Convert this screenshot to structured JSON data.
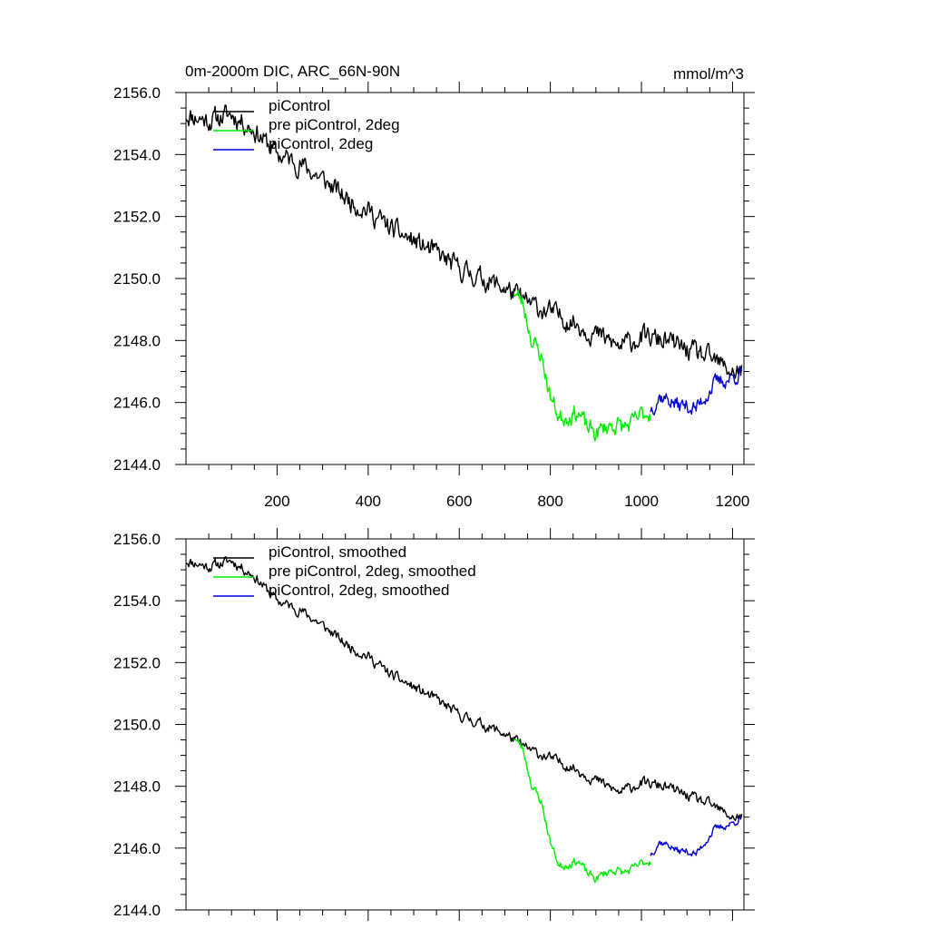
{
  "page_title": "0m-2000m DIC, ARC_66N-90N",
  "units": "mmol/m^3",
  "colors": {
    "black": "#000000",
    "green": "#00ee00",
    "blue": "#0000dd"
  },
  "chart_data": [
    {
      "type": "line",
      "title": "0m-2000m DIC, ARC_66N-90N",
      "units_label": "mmol/m^3",
      "xlim": [
        0,
        1225
      ],
      "ylim": [
        2144,
        2156
      ],
      "x_ticks": [
        200,
        400,
        600,
        800,
        1000,
        1200
      ],
      "x_tick_labels": [
        "200",
        "400",
        "600",
        "800",
        "1000",
        "1200"
      ],
      "y_ticks": [
        2144,
        2146,
        2148,
        2150,
        2152,
        2154,
        2156
      ],
      "y_tick_labels": [
        "2144.0",
        "2146.0",
        "2148.0",
        "2150.0",
        "2152.0",
        "2154.0",
        "2156.0"
      ],
      "legend_position": "top-left",
      "series": [
        {
          "name": "piControl",
          "color": "#000000",
          "noise": 0.28,
          "seed": 11,
          "x": [
            0,
            50,
            100,
            150,
            200,
            250,
            300,
            350,
            400,
            450,
            500,
            550,
            600,
            650,
            700,
            750,
            800,
            850,
            900,
            950,
            1000,
            1050,
            1100,
            1150,
            1200,
            1220
          ],
          "y": [
            2155.3,
            2155.1,
            2155.3,
            2154.8,
            2154.0,
            2153.7,
            2153.2,
            2152.6,
            2152.2,
            2151.6,
            2151.2,
            2150.8,
            2150.3,
            2150.0,
            2149.7,
            2149.2,
            2148.9,
            2148.6,
            2148.2,
            2147.8,
            2148.1,
            2148.0,
            2147.7,
            2147.4,
            2147.0,
            2147.0
          ]
        },
        {
          "name": "pre piControl, 2deg",
          "color": "#00ee00",
          "noise": 0.25,
          "seed": 23,
          "x": [
            720,
            740,
            760,
            780,
            800,
            820,
            840,
            860,
            880,
            900,
            920,
            940,
            960,
            980,
            1000,
            1020
          ],
          "y": [
            2149.6,
            2149.2,
            2148.0,
            2147.5,
            2146.2,
            2145.5,
            2145.6,
            2145.7,
            2145.2,
            2145.0,
            2145.2,
            2145.3,
            2145.2,
            2145.3,
            2145.6,
            2145.7
          ]
        },
        {
          "name": "piControl, 2deg",
          "color": "#0000dd",
          "noise": 0.22,
          "seed": 37,
          "x": [
            1020,
            1040,
            1060,
            1080,
            1100,
            1120,
            1140,
            1160,
            1180,
            1200,
            1220
          ],
          "y": [
            2145.8,
            2146.2,
            2146.1,
            2145.9,
            2145.9,
            2145.8,
            2146.2,
            2146.6,
            2146.7,
            2146.8,
            2147.0
          ]
        }
      ]
    },
    {
      "type": "line",
      "xlim": [
        0,
        1225
      ],
      "ylim": [
        2144,
        2156
      ],
      "x_ticks": [
        200,
        400,
        600,
        800,
        1000,
        1200
      ],
      "y_ticks": [
        2144,
        2146,
        2148,
        2150,
        2152,
        2154,
        2156
      ],
      "y_tick_labels": [
        "2144.0",
        "2146.0",
        "2148.0",
        "2150.0",
        "2152.0",
        "2154.0",
        "2156.0"
      ],
      "legend_position": "top-left",
      "series": [
        {
          "name": "piControl, smoothed",
          "color": "#000000",
          "noise": 0.14,
          "seed": 11,
          "x": [
            0,
            50,
            100,
            150,
            200,
            250,
            300,
            350,
            400,
            450,
            500,
            550,
            600,
            650,
            700,
            750,
            800,
            850,
            900,
            950,
            1000,
            1050,
            1100,
            1150,
            1200,
            1220
          ],
          "y": [
            2155.3,
            2155.1,
            2155.3,
            2154.8,
            2154.0,
            2153.7,
            2153.2,
            2152.6,
            2152.2,
            2151.6,
            2151.2,
            2150.8,
            2150.3,
            2150.0,
            2149.7,
            2149.2,
            2148.9,
            2148.6,
            2148.2,
            2147.8,
            2148.1,
            2148.0,
            2147.7,
            2147.4,
            2147.0,
            2147.0
          ]
        },
        {
          "name": "pre piControl, 2deg, smoothed",
          "color": "#00ee00",
          "noise": 0.12,
          "seed": 23,
          "x": [
            720,
            740,
            760,
            780,
            800,
            820,
            840,
            860,
            880,
            900,
            920,
            940,
            960,
            980,
            1000,
            1020
          ],
          "y": [
            2149.6,
            2149.2,
            2148.0,
            2147.5,
            2146.2,
            2145.4,
            2145.5,
            2145.6,
            2145.2,
            2145.0,
            2145.2,
            2145.3,
            2145.2,
            2145.3,
            2145.5,
            2145.6
          ]
        },
        {
          "name": "piControl, 2deg, smoothed",
          "color": "#0000dd",
          "noise": 0.1,
          "seed": 37,
          "x": [
            1020,
            1040,
            1060,
            1080,
            1100,
            1120,
            1140,
            1160,
            1180,
            1200,
            1220
          ],
          "y": [
            2145.8,
            2146.2,
            2146.1,
            2145.9,
            2145.9,
            2145.8,
            2146.2,
            2146.6,
            2146.7,
            2146.8,
            2147.0
          ]
        }
      ]
    }
  ]
}
